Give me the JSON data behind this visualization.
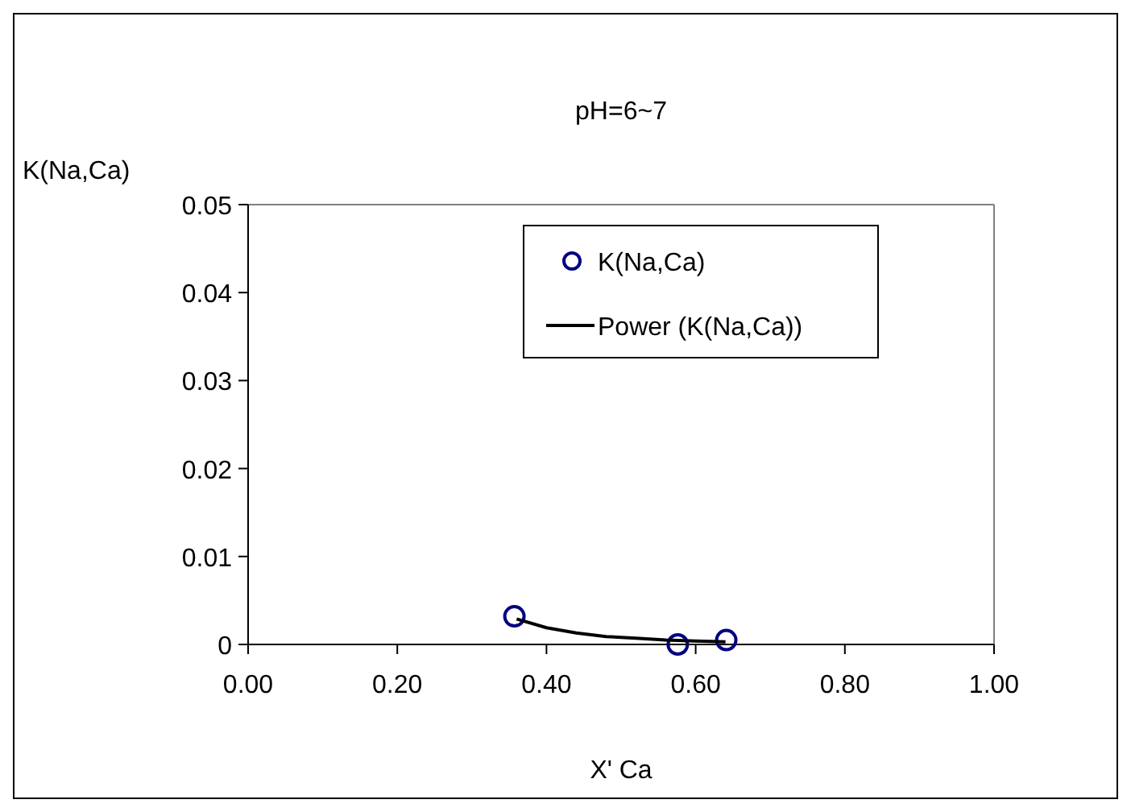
{
  "chart_data": {
    "type": "scatter",
    "title": "pH=6~7",
    "xlabel": "X' Ca",
    "ylabel": "K(Na,Ca)",
    "xlim": [
      0,
      1
    ],
    "xticks": [
      {
        "value": 0,
        "label": "0.00"
      },
      {
        "value": 0.2,
        "label": "0.20"
      },
      {
        "value": 0.4,
        "label": "0.40"
      },
      {
        "value": 0.6,
        "label": "0.60"
      },
      {
        "value": 0.8,
        "label": "0.80"
      },
      {
        "value": 1,
        "label": "1.00"
      }
    ],
    "ylim": [
      0,
      0.05
    ],
    "yticks": [
      0,
      0.01,
      0.02,
      0.03,
      0.04,
      0.05
    ],
    "grid": false,
    "legend": "top right",
    "series": [
      {
        "name": "K(Na,Ca)",
        "type": "scatter",
        "marker": "circle",
        "color": "#000080",
        "x": [
          0.357,
          0.576,
          0.641
        ],
        "values": [
          0.0032,
          0,
          0.0005
        ]
      },
      {
        "name": "Power (K(Na,Ca))",
        "type": "line",
        "marker": "none",
        "line_style": "solid",
        "color": "#000000",
        "x": [
          0.36,
          0.4,
          0.44,
          0.48,
          0.52,
          0.56,
          0.6,
          0.64
        ],
        "values": [
          0.0029,
          0.0019,
          0.0013,
          0.0009,
          0.0007,
          0.0005,
          0.0004,
          0.0003
        ]
      }
    ]
  }
}
